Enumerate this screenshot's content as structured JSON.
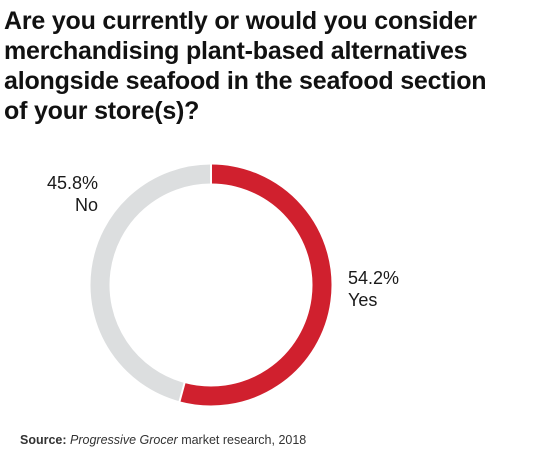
{
  "title_lines": [
    "Are you currently or would you consider",
    "merchandising plant-based alternatives",
    "alongside seafood in the seafood section",
    "of your store(s)?"
  ],
  "chart_data": {
    "type": "pie",
    "variant": "donut",
    "title": "Are you currently or would you consider merchandising plant-based alternatives alongside seafood in the seafood section of your store(s)?",
    "categories": [
      "Yes",
      "No"
    ],
    "values": [
      54.2,
      45.8
    ],
    "value_labels": [
      "54.2%",
      "45.8%"
    ],
    "colors": [
      "#d0202e",
      "#dcdedf"
    ],
    "legend": "none"
  },
  "source": {
    "prefix": "Source:",
    "publication": "Progressive Grocer",
    "rest": " market research, 2018"
  }
}
